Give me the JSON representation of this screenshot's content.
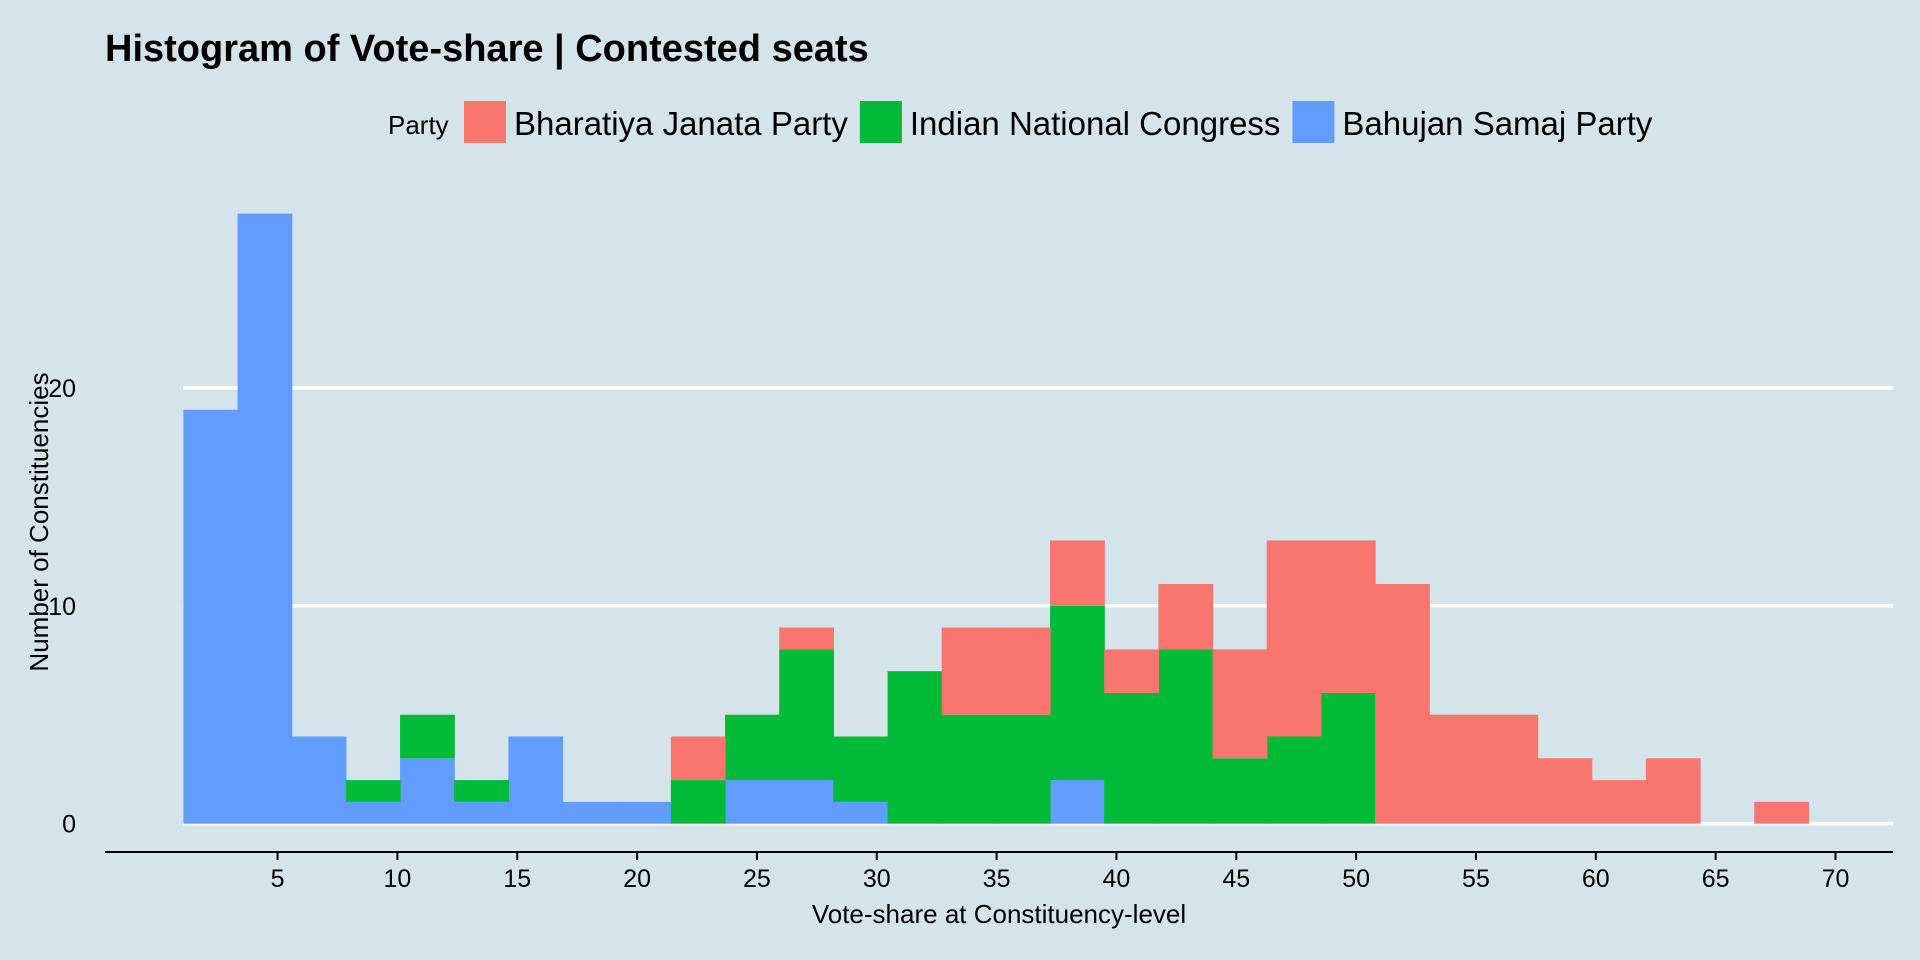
{
  "chart_data": {
    "type": "bar",
    "stacked": true,
    "title": "Histogram of Vote-share |  Contested seats",
    "xlabel": "Vote-share at Constituency-level",
    "ylabel": "Number of Constituencies",
    "legend": {
      "title": "Party",
      "placement": "top"
    },
    "xlim": [
      -2.2,
      72.4
    ],
    "ylim": [
      -1.3,
      30
    ],
    "xticks": [
      5,
      10,
      15,
      20,
      25,
      30,
      35,
      40,
      45,
      50,
      55,
      60,
      65,
      70
    ],
    "yticks": [
      0,
      10,
      20
    ],
    "grid": "horizontal",
    "bin_width": 2.26,
    "bin_starts": [
      1.07,
      3.33,
      5.59,
      7.85,
      10.11,
      12.37,
      14.63,
      16.89,
      19.15,
      21.41,
      23.67,
      25.93,
      28.19,
      30.45,
      32.71,
      34.97,
      37.23,
      39.49,
      41.75,
      44.01,
      46.27,
      48.53,
      50.79,
      53.05,
      55.31,
      57.57,
      59.83,
      62.09,
      64.35,
      66.61
    ],
    "series": [
      {
        "name": "Bahujan Samaj Party",
        "color": "#619cff",
        "values": [
          19,
          28,
          4,
          1,
          3,
          1,
          4,
          1,
          1,
          0,
          2,
          2,
          1,
          0,
          0,
          0,
          2,
          0,
          0,
          0,
          0,
          0,
          0,
          0,
          0,
          0,
          0,
          0,
          0,
          0
        ]
      },
      {
        "name": "Indian National Congress",
        "color": "#00ba38",
        "values": [
          0,
          0,
          0,
          1,
          2,
          1,
          0,
          0,
          0,
          2,
          3,
          6,
          3,
          7,
          5,
          5,
          8,
          6,
          8,
          3,
          4,
          6,
          0,
          0,
          0,
          0,
          0,
          0,
          0,
          0
        ]
      },
      {
        "name": "Bharatiya Janata Party",
        "color": "#f8766d",
        "values": [
          0,
          0,
          0,
          0,
          0,
          0,
          0,
          0,
          0,
          2,
          0,
          1,
          0,
          0,
          4,
          4,
          3,
          2,
          3,
          5,
          9,
          7,
          11,
          5,
          5,
          3,
          2,
          3,
          0,
          1
        ]
      }
    ],
    "legend_order": [
      "Bharatiya Janata Party",
      "Indian National Congress",
      "Bahujan Samaj Party"
    ]
  }
}
